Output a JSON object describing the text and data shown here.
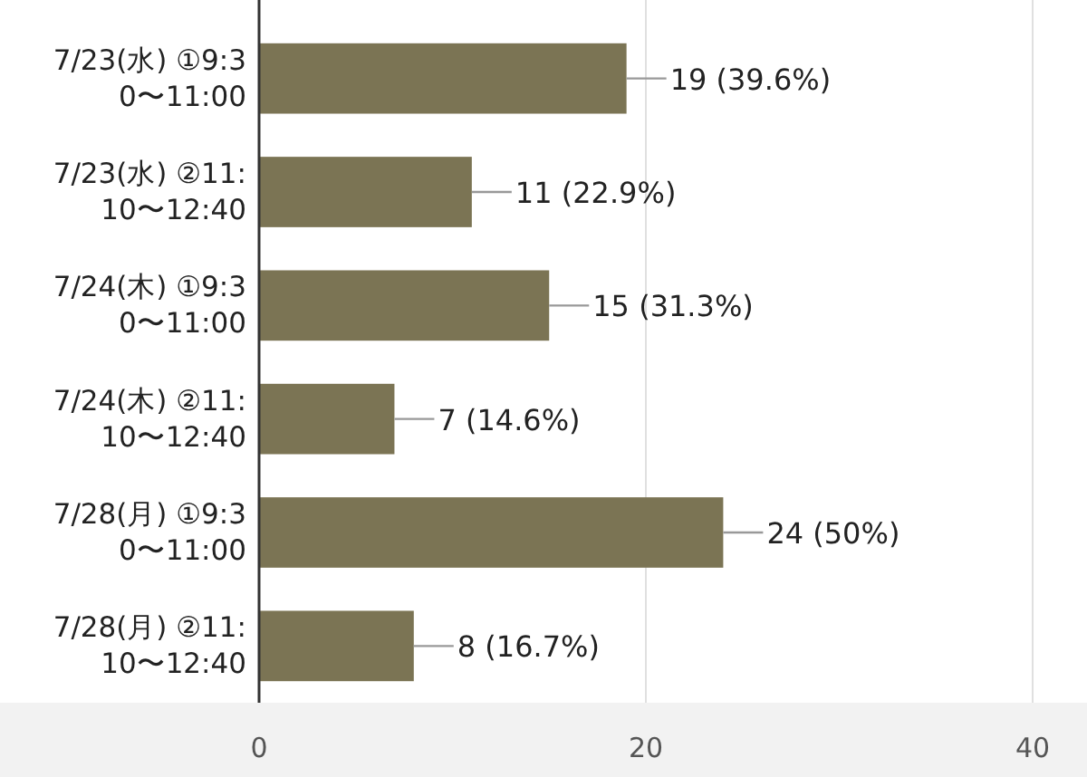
{
  "chart_data": {
    "type": "bar",
    "orientation": "horizontal",
    "categories": [
      "7/23(水) ①9:30〜11:00",
      "7/23(水) ②11:10〜12:40",
      "7/24(木) ①9:30〜11:00",
      "7/24(木) ②11:10〜12:40",
      "7/28(月) ①9:30〜11:00",
      "7/28(月) ②11:10〜12:40"
    ],
    "values": [
      19,
      11,
      15,
      7,
      24,
      8
    ],
    "value_labels": [
      "19 (39.6%)",
      "11 (22.9%)",
      "15 (31.3%)",
      "7 (14.6%)",
      "24 (50%)",
      "8 (16.7%)"
    ],
    "color": "#7b7454",
    "xlim": [
      0,
      40
    ],
    "xticks": [
      0,
      20,
      40
    ],
    "grid": "x"
  }
}
